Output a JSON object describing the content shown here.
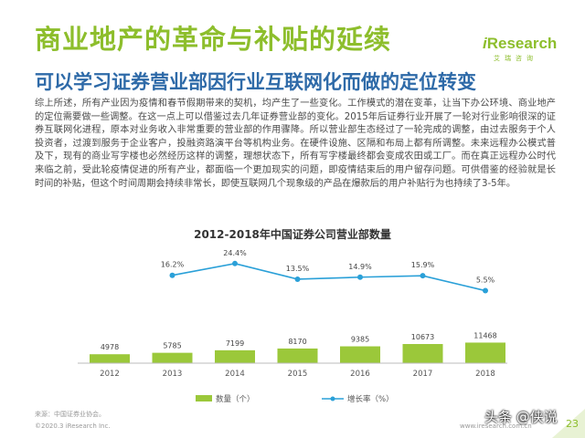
{
  "header": {
    "title": "商业地产的革命与补贴的延续",
    "subtitle": "可以学习证券营业部因行业互联网化而做的定位转变",
    "logo_prefix": "i",
    "logo_main": "Research",
    "logo_sub": "艾瑞咨询"
  },
  "body_text": "综上所述，所有产业因为疫情和春节假期带来的契机，均产生了一些变化。工作模式的潜在变革，让当下办公环境、商业地产的定位需要做一些调整。在这一点上可以借鉴过去几年证券营业部的变化。2015年后证券行业开展了一轮对行业影响很深的证券互联网化进程，原本对业务收入非常重要的营业部的作用骤降。所以营业部生态经过了一轮完成的调整，由过去服务于个人投资者，过渡到服务于企业客户，投融资路演平台等机构业务。在硬件设施、区隔和布局上都有所调整。未来远程办公模式普及下，现有的商业写字楼也必然经历这样的调整，理想状态下，所有写字楼最终都会变成农田或工厂。而在真正远程办公时代来临之前，受此轮疫情促进的所有产业，都面临一个更加现实的问题，即疫情结束后的用户留存问题。可供借鉴的经验就是长时间的补贴，但这个时间周期会持续非常长，即使互联网几个现象级的产品在爆款后的用户补贴行为也持续了3-5年。",
  "chart_data": {
    "type": "bar",
    "title": "2012-2018年中国证券公司营业部数量",
    "categories": [
      "2012",
      "2013",
      "2014",
      "2015",
      "2016",
      "2017",
      "2018"
    ],
    "series": [
      {
        "name": "数量（个）",
        "type": "bar",
        "values": [
          4978,
          5785,
          7199,
          8170,
          9385,
          10673,
          11468
        ],
        "value_labels": [
          "4978",
          "5785",
          "7199",
          "8170",
          "9385",
          "10673",
          "11468"
        ],
        "color": "#9bc83a"
      },
      {
        "name": "增长率（%）",
        "type": "line",
        "values": [
          null,
          16.2,
          24.4,
          13.5,
          14.9,
          15.9,
          5.5
        ],
        "value_labels": [
          "",
          "16.2%",
          "24.4%",
          "13.5%",
          "14.9%",
          "15.9%",
          "5.5%"
        ],
        "color": "#2aa0d8"
      }
    ],
    "bar_ylim": [
      0,
      60000
    ],
    "line_ylim": [
      -45,
      30
    ],
    "grid": false,
    "legend_position": "bottom"
  },
  "footer": {
    "source": "来源：中国证券业协会。",
    "copyright": "©2020.3 iResearch Inc.",
    "url": "www.iresearch.com.cn",
    "page_number": "23",
    "watermark": "头条 @侠说"
  },
  "colors": {
    "title_green": "#8dbe2c",
    "subtitle_blue": "#2e6aa8",
    "bar_green": "#9bc83a",
    "line_blue": "#2aa0d8"
  }
}
